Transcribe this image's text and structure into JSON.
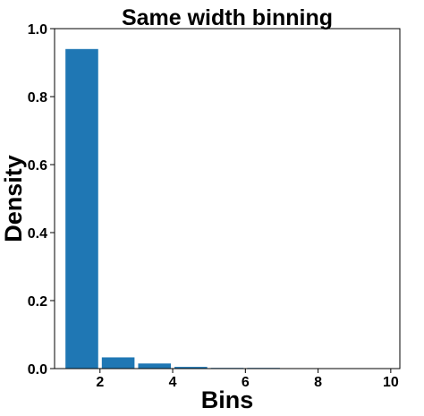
{
  "chart_data": {
    "type": "bar",
    "title": "Same width binning",
    "xlabel": "Bins",
    "ylabel": "Density",
    "xlim": [
      0.75,
      10.25
    ],
    "ylim": [
      0,
      1.0
    ],
    "bar_width": 0.9,
    "bar_color": "#1f77b4",
    "grid": false,
    "x": [
      1.5,
      2.5,
      3.5,
      4.5,
      5.5,
      6.5,
      7.5,
      8.5,
      9.5
    ],
    "values": [
      0.94,
      0.033,
      0.015,
      0.005,
      0.002,
      0.002,
      0.001,
      0.001,
      0.001
    ],
    "x_ticks": [
      2,
      4,
      6,
      8,
      10
    ],
    "x_tick_labels": [
      "2",
      "4",
      "6",
      "8",
      "10"
    ],
    "y_ticks": [
      0.0,
      0.2,
      0.4,
      0.6,
      0.8,
      1.0
    ],
    "y_tick_labels": [
      "0.0",
      "0.2",
      "0.4",
      "0.6",
      "0.8",
      "1.0"
    ]
  }
}
